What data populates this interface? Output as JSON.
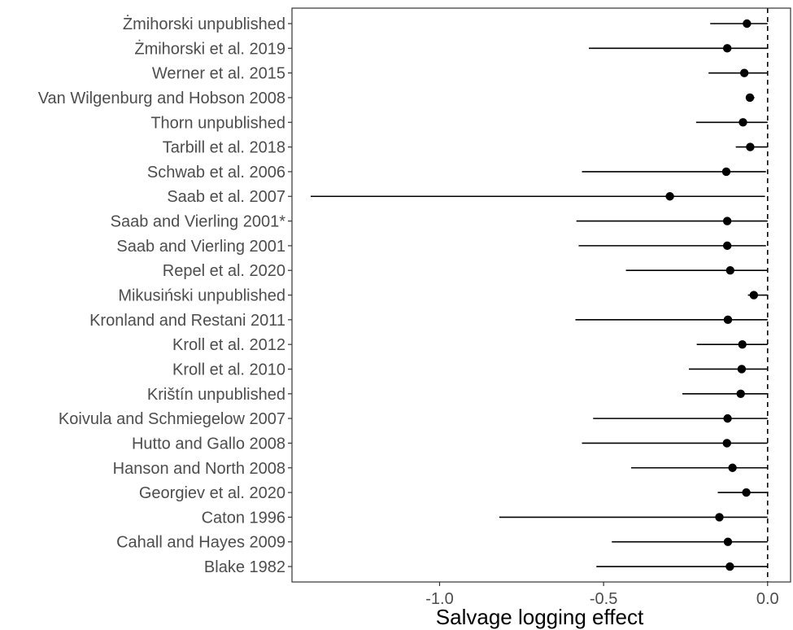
{
  "chart_data": {
    "type": "forest",
    "xlabel": "Salvage logging effect",
    "xlim": [
      -1.45,
      0.07
    ],
    "xticks": [
      -1.0,
      -0.5,
      0.0
    ],
    "xtick_labels": [
      "-1.0",
      "-0.5",
      "0.0"
    ],
    "reference_line": 0.0,
    "grid": false,
    "colors": {
      "point": "#000000",
      "line": "#000000",
      "axis": "#333333",
      "label": "#4d4d4d"
    },
    "studies": [
      {
        "label": "Żmihorski unpublished",
        "estimate": -0.063,
        "lower": -0.175,
        "upper": 0.0
      },
      {
        "label": "Żmihorski et al. 2019",
        "estimate": -0.123,
        "lower": -0.545,
        "upper": 0.0
      },
      {
        "label": "Werner et al. 2015",
        "estimate": -0.071,
        "lower": -0.18,
        "upper": 0.0
      },
      {
        "label": "Van Wilgenburg and Hobson 2008",
        "estimate": -0.054,
        "lower": -0.066,
        "upper": -0.04
      },
      {
        "label": "Thorn unpublished",
        "estimate": -0.075,
        "lower": -0.218,
        "upper": 0.0
      },
      {
        "label": "Tarbill et al. 2018",
        "estimate": -0.053,
        "lower": -0.097,
        "upper": 0.0
      },
      {
        "label": "Schwab et al. 2006",
        "estimate": -0.126,
        "lower": -0.566,
        "upper": -0.005
      },
      {
        "label": "Saab et al. 2007",
        "estimate": -0.298,
        "lower": -1.393,
        "upper": -0.008
      },
      {
        "label": "Saab and Vierling 2001*",
        "estimate": -0.123,
        "lower": -0.583,
        "upper": 0.0
      },
      {
        "label": "Saab and Vierling 2001",
        "estimate": -0.123,
        "lower": -0.576,
        "upper": -0.005
      },
      {
        "label": "Repel et al. 2020",
        "estimate": -0.114,
        "lower": -0.432,
        "upper": 0.0
      },
      {
        "label": "Mikusiński unpublished",
        "estimate": -0.042,
        "lower": -0.06,
        "upper": 0.0
      },
      {
        "label": "Kronland and Restani 2011",
        "estimate": -0.121,
        "lower": -0.586,
        "upper": 0.0
      },
      {
        "label": "Kroll et al. 2012",
        "estimate": -0.077,
        "lower": -0.216,
        "upper": 0.0
      },
      {
        "label": "Kroll et al. 2010",
        "estimate": -0.079,
        "lower": -0.24,
        "upper": 0.0
      },
      {
        "label": "Krištín unpublished",
        "estimate": -0.082,
        "lower": -0.26,
        "upper": 0.0
      },
      {
        "label": "Koivula and Schmiegelow 2007",
        "estimate": -0.122,
        "lower": -0.532,
        "upper": 0.0
      },
      {
        "label": "Hutto and Gallo 2008",
        "estimate": -0.124,
        "lower": -0.566,
        "upper": 0.0
      },
      {
        "label": "Hanson and North 2008",
        "estimate": -0.107,
        "lower": -0.416,
        "upper": 0.0
      },
      {
        "label": "Georgiev et al. 2020",
        "estimate": -0.065,
        "lower": -0.152,
        "upper": 0.0
      },
      {
        "label": "Caton 1996",
        "estimate": -0.147,
        "lower": -0.818,
        "upper": 0.0
      },
      {
        "label": "Cahall and Hayes 2009",
        "estimate": -0.121,
        "lower": -0.475,
        "upper": 0.0
      },
      {
        "label": "Blake 1982",
        "estimate": -0.115,
        "lower": -0.522,
        "upper": 0.0
      }
    ]
  }
}
